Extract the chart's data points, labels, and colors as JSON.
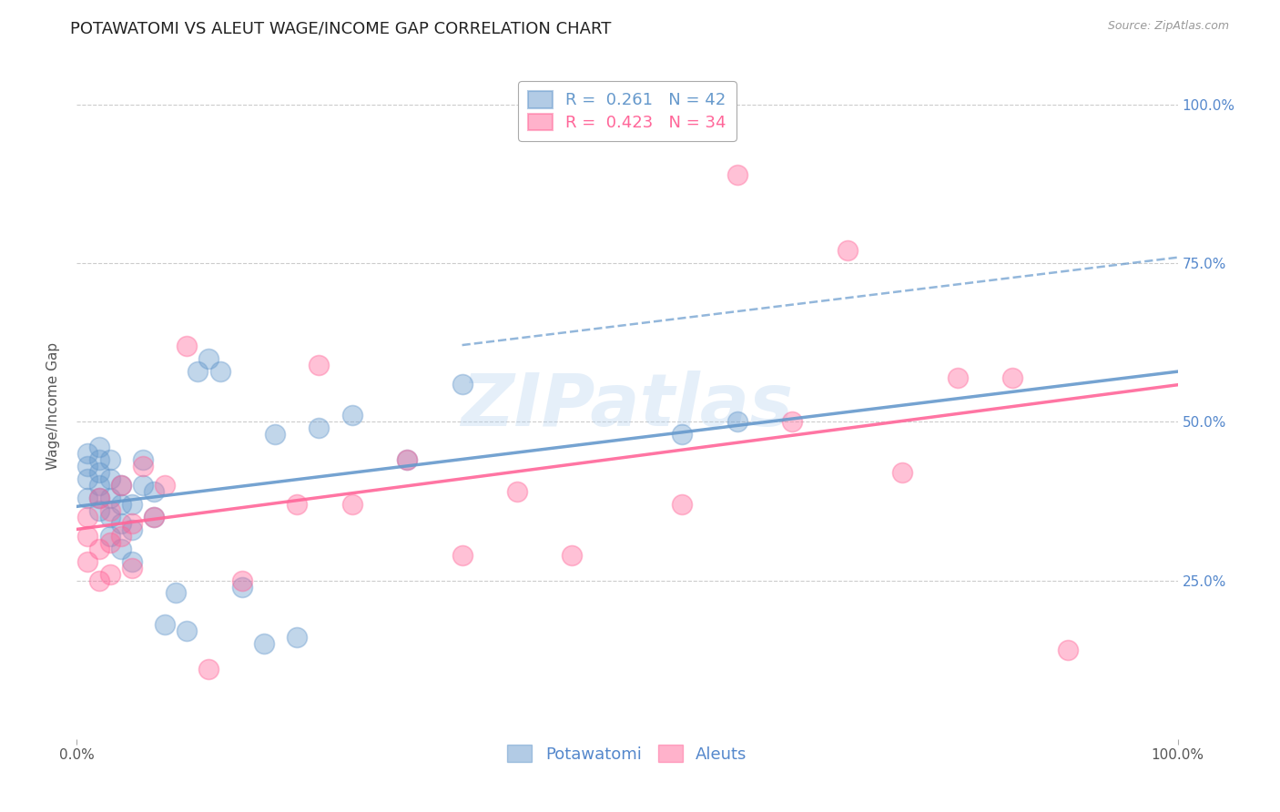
{
  "title": "POTAWATOMI VS ALEUT WAGE/INCOME GAP CORRELATION CHART",
  "source": "Source: ZipAtlas.com",
  "ylabel": "Wage/Income Gap",
  "watermark": "ZIPatlas",
  "potawatomi_R": 0.261,
  "potawatomi_N": 42,
  "aleut_R": 0.423,
  "aleut_N": 34,
  "potawatomi_color": "#6699CC",
  "aleut_color": "#FF6699",
  "right_yticks": [
    "100.0%",
    "75.0%",
    "50.0%",
    "25.0%"
  ],
  "right_ytick_vals": [
    1.0,
    0.75,
    0.5,
    0.25
  ],
  "potawatomi_x": [
    0.01,
    0.01,
    0.01,
    0.01,
    0.02,
    0.02,
    0.02,
    0.02,
    0.02,
    0.02,
    0.03,
    0.03,
    0.03,
    0.03,
    0.03,
    0.04,
    0.04,
    0.04,
    0.04,
    0.05,
    0.05,
    0.05,
    0.06,
    0.06,
    0.07,
    0.07,
    0.08,
    0.09,
    0.1,
    0.11,
    0.12,
    0.13,
    0.15,
    0.17,
    0.18,
    0.2,
    0.22,
    0.25,
    0.3,
    0.35,
    0.55,
    0.6
  ],
  "potawatomi_y": [
    0.38,
    0.41,
    0.43,
    0.45,
    0.36,
    0.38,
    0.4,
    0.42,
    0.44,
    0.46,
    0.32,
    0.35,
    0.38,
    0.41,
    0.44,
    0.3,
    0.34,
    0.37,
    0.4,
    0.28,
    0.33,
    0.37,
    0.4,
    0.44,
    0.35,
    0.39,
    0.18,
    0.23,
    0.17,
    0.58,
    0.6,
    0.58,
    0.24,
    0.15,
    0.48,
    0.16,
    0.49,
    0.51,
    0.44,
    0.56,
    0.48,
    0.5
  ],
  "aleut_x": [
    0.01,
    0.01,
    0.01,
    0.02,
    0.02,
    0.02,
    0.03,
    0.03,
    0.03,
    0.04,
    0.04,
    0.05,
    0.05,
    0.06,
    0.07,
    0.08,
    0.1,
    0.12,
    0.15,
    0.2,
    0.22,
    0.25,
    0.3,
    0.35,
    0.4,
    0.45,
    0.55,
    0.6,
    0.65,
    0.7,
    0.75,
    0.8,
    0.85,
    0.9
  ],
  "aleut_y": [
    0.28,
    0.32,
    0.35,
    0.25,
    0.3,
    0.38,
    0.26,
    0.31,
    0.36,
    0.32,
    0.4,
    0.27,
    0.34,
    0.43,
    0.35,
    0.4,
    0.62,
    0.11,
    0.25,
    0.37,
    0.59,
    0.37,
    0.44,
    0.29,
    0.39,
    0.29,
    0.37,
    0.89,
    0.5,
    0.77,
    0.42,
    0.57,
    0.57,
    0.14
  ],
  "xlim": [
    0.0,
    1.0
  ],
  "ylim": [
    0.0,
    1.05
  ],
  "grid_color": "#CCCCCC",
  "bg_color": "#FFFFFF",
  "title_fontsize": 13,
  "label_fontsize": 11,
  "tick_fontsize": 11,
  "legend_fontsize": 13
}
